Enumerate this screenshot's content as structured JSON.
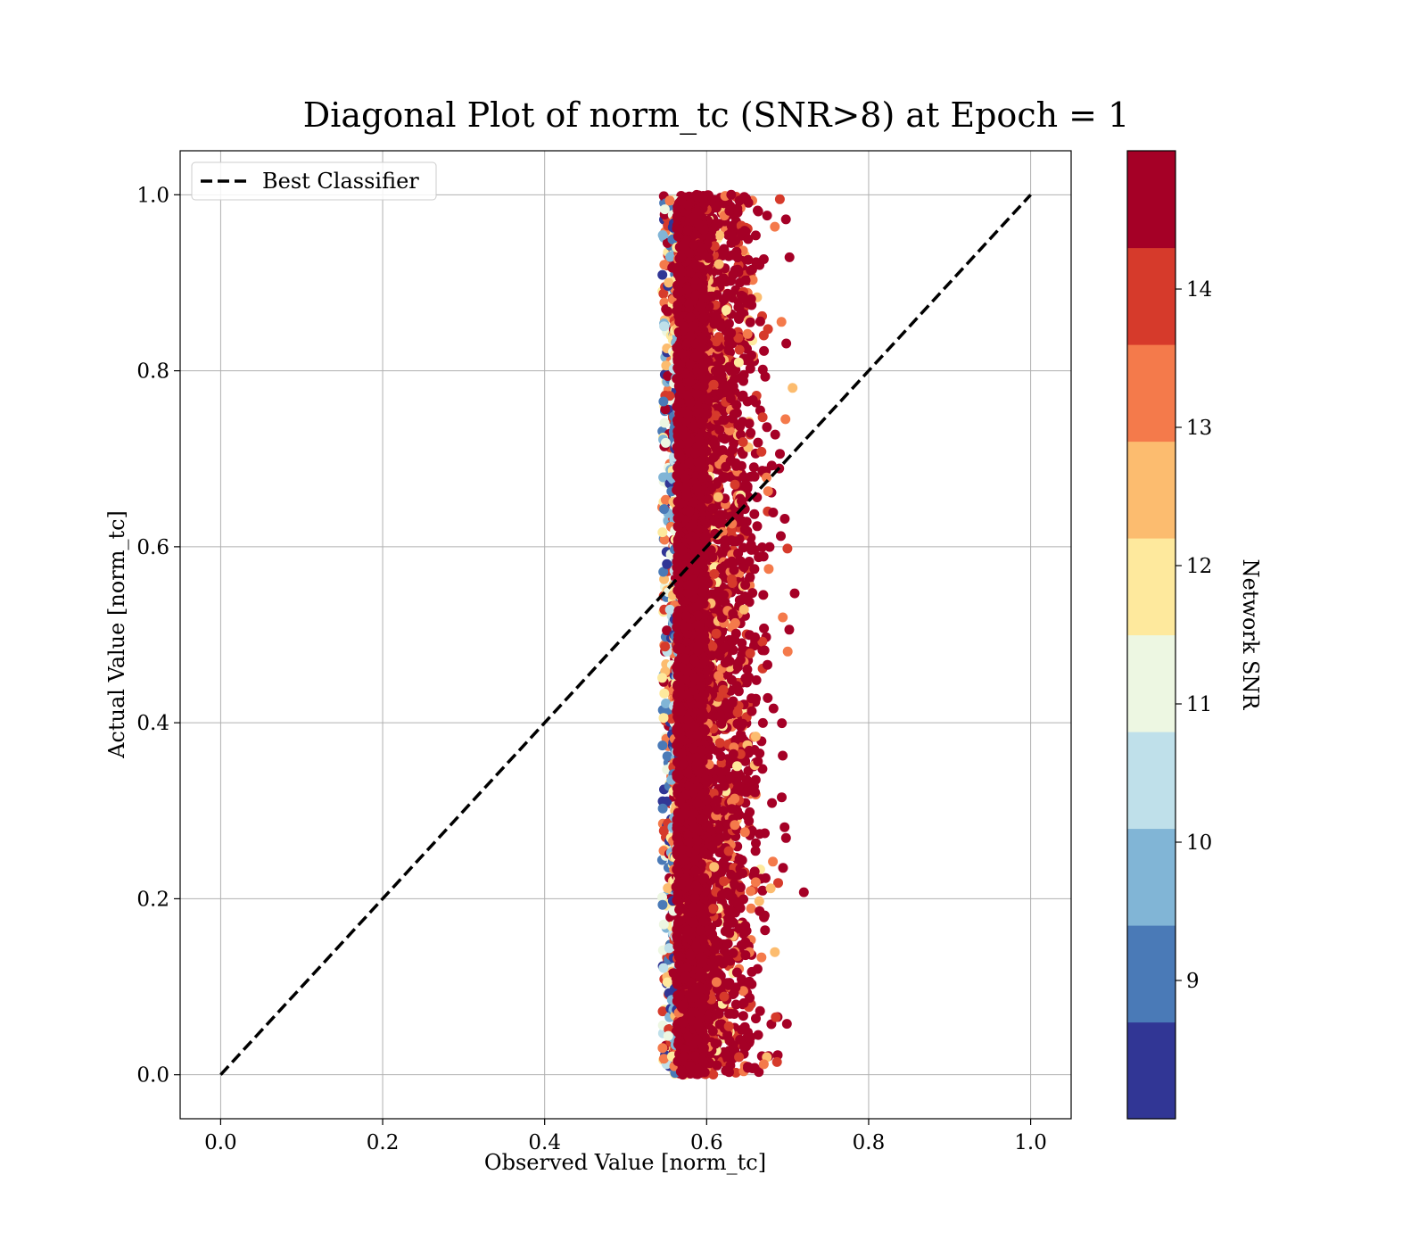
{
  "chart_data": {
    "type": "scatter",
    "title": "Diagonal Plot of norm_tc (SNR>8) at Epoch = 1",
    "xlabel": "Observed Value [norm_tc]",
    "ylabel": "Actual Value [norm_tc]",
    "xlim": [
      -0.05,
      1.05
    ],
    "ylim": [
      -0.05,
      1.05
    ],
    "xticks": [
      "0.0",
      "0.2",
      "0.4",
      "0.6",
      "0.8",
      "1.0"
    ],
    "yticks": [
      "0.0",
      "0.2",
      "0.4",
      "0.6",
      "0.8",
      "1.0"
    ],
    "xtick_values": [
      0.0,
      0.2,
      0.4,
      0.6,
      0.8,
      1.0
    ],
    "ytick_values": [
      0.0,
      0.2,
      0.4,
      0.6,
      0.8,
      1.0
    ],
    "grid": true,
    "legend": {
      "placement": "upper-left",
      "entries": [
        {
          "label": "Best Classifier",
          "style": "dashed",
          "color": "#000000"
        }
      ]
    },
    "reference_line": {
      "name": "Best Classifier",
      "x": [
        0.0,
        1.0
      ],
      "y": [
        0.0,
        1.0
      ],
      "color": "#000000",
      "style": "dashed"
    },
    "scatter_summary": {
      "x_center": 0.6,
      "x_range": [
        0.54,
        0.72
      ],
      "y_range": [
        0.0,
        1.0
      ],
      "color_encoding": "Network SNR"
    },
    "colorbar": {
      "label": "Network SNR",
      "range": [
        8.0,
        15.0
      ],
      "ticks": [
        "9",
        "10",
        "11",
        "12",
        "13",
        "14"
      ],
      "tick_values": [
        9,
        10,
        11,
        12,
        13,
        14
      ],
      "colormap": "RdYlBu_r",
      "bins": [
        {
          "from": 8.0,
          "to": 8.7,
          "color": "#313695"
        },
        {
          "from": 8.7,
          "to": 9.4,
          "color": "#4a7ab7"
        },
        {
          "from": 9.4,
          "to": 10.1,
          "color": "#81b5d6"
        },
        {
          "from": 10.1,
          "to": 10.8,
          "color": "#bfe0ea"
        },
        {
          "from": 10.8,
          "to": 11.5,
          "color": "#edf7e2"
        },
        {
          "from": 11.5,
          "to": 12.2,
          "color": "#fee99d"
        },
        {
          "from": 12.2,
          "to": 12.9,
          "color": "#fcbc6f"
        },
        {
          "from": 12.9,
          "to": 13.6,
          "color": "#f47a4b"
        },
        {
          "from": 13.6,
          "to": 14.3,
          "color": "#d63a2b"
        },
        {
          "from": 14.3,
          "to": 15.0,
          "color": "#a50026"
        }
      ]
    }
  }
}
